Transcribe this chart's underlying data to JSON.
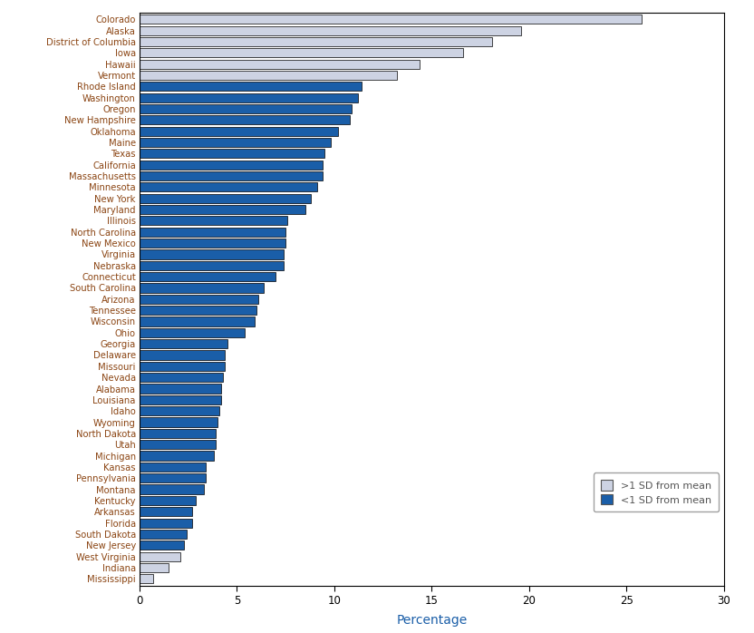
{
  "states": [
    "Colorado",
    "Alaska",
    "District of Columbia",
    "Iowa",
    "Hawaii",
    "Vermont",
    "Rhode Island",
    "Washington",
    "Oregon",
    "New Hampshire",
    "Oklahoma",
    "Maine",
    "Texas",
    "California",
    "Massachusetts",
    "Minnesota",
    "New York",
    "Maryland",
    "Illinois",
    "North Carolina",
    "New Mexico",
    "Virginia",
    "Nebraska",
    "Connecticut",
    "South Carolina",
    "Arizona",
    "Tennessee",
    "Wisconsin",
    "Ohio",
    "Georgia",
    "Delaware",
    "Missouri",
    "Nevada",
    "Alabama",
    "Louisiana",
    "Idaho",
    "Wyoming",
    "North Dakota",
    "Utah",
    "Michigan",
    "Kansas",
    "Pennsylvania",
    "Montana",
    "Kentucky",
    "Arkansas",
    "Florida",
    "South Dakota",
    "New Jersey",
    "West Virginia",
    "Indiana",
    "Mississippi"
  ],
  "values": [
    25.8,
    19.6,
    18.1,
    16.6,
    14.4,
    13.2,
    11.4,
    11.2,
    10.9,
    10.8,
    10.2,
    9.8,
    9.5,
    9.4,
    9.4,
    9.1,
    8.8,
    8.5,
    7.6,
    7.5,
    7.5,
    7.4,
    7.4,
    7.0,
    6.4,
    6.1,
    6.0,
    5.9,
    5.4,
    4.5,
    4.4,
    4.4,
    4.3,
    4.2,
    4.2,
    4.1,
    4.0,
    3.9,
    3.9,
    3.8,
    3.4,
    3.4,
    3.3,
    2.9,
    2.7,
    2.7,
    2.4,
    2.3,
    2.1,
    1.5,
    0.7
  ],
  "colors": [
    "#cdd3e3",
    "#cdd3e3",
    "#cdd3e3",
    "#cdd3e3",
    "#cdd3e3",
    "#cdd3e3",
    "#1a5ea8",
    "#1a5ea8",
    "#1a5ea8",
    "#1a5ea8",
    "#1a5ea8",
    "#1a5ea8",
    "#1a5ea8",
    "#1a5ea8",
    "#1a5ea8",
    "#1a5ea8",
    "#1a5ea8",
    "#1a5ea8",
    "#1a5ea8",
    "#1a5ea8",
    "#1a5ea8",
    "#1a5ea8",
    "#1a5ea8",
    "#1a5ea8",
    "#1a5ea8",
    "#1a5ea8",
    "#1a5ea8",
    "#1a5ea8",
    "#1a5ea8",
    "#1a5ea8",
    "#1a5ea8",
    "#1a5ea8",
    "#1a5ea8",
    "#1a5ea8",
    "#1a5ea8",
    "#1a5ea8",
    "#1a5ea8",
    "#1a5ea8",
    "#1a5ea8",
    "#1a5ea8",
    "#1a5ea8",
    "#1a5ea8",
    "#1a5ea8",
    "#1a5ea8",
    "#1a5ea8",
    "#1a5ea8",
    "#1a5ea8",
    "#1a5ea8",
    "#cdd3e3",
    "#cdd3e3",
    "#cdd3e3"
  ],
  "label_colors": [
    "#8b4513",
    "#8b4513",
    "#8b4513",
    "#8b4513",
    "#8b4513",
    "#8b4513",
    "#8b4513",
    "#8b4513",
    "#8b4513",
    "#8b4513",
    "#8b4513",
    "#8b4513",
    "#8b4513",
    "#8b4513",
    "#8b4513",
    "#8b4513",
    "#8b4513",
    "#8b4513",
    "#8b4513",
    "#8b4513",
    "#8b4513",
    "#8b4513",
    "#8b4513",
    "#8b4513",
    "#8b4513",
    "#8b4513",
    "#8b4513",
    "#8b4513",
    "#8b4513",
    "#8b4513",
    "#8b4513",
    "#8b4513",
    "#8b4513",
    "#8b4513",
    "#8b4513",
    "#8b4513",
    "#8b4513",
    "#8b4513",
    "#8b4513",
    "#8b4513",
    "#8b4513",
    "#8b4513",
    "#8b4513",
    "#8b4513",
    "#8b4513",
    "#8b4513",
    "#8b4513",
    "#8b4513",
    "#8b4513",
    "#8b4513",
    "#8b4513"
  ],
  "xlabel": "Percentage",
  "xlabel_color": "#1a5ea8",
  "xlim": [
    0,
    30
  ],
  "xticks": [
    0,
    5,
    10,
    15,
    20,
    25,
    30
  ],
  "legend_labels": [
    ">1 SD from mean",
    "<1 SD from mean"
  ],
  "legend_colors": [
    "#cdd3e3",
    "#1a5ea8"
  ],
  "bar_edgecolor": "#000000",
  "bar_height": 0.82,
  "background_color": "#ffffff",
  "label_fontsize": 7.2,
  "tick_fontsize": 8.5
}
